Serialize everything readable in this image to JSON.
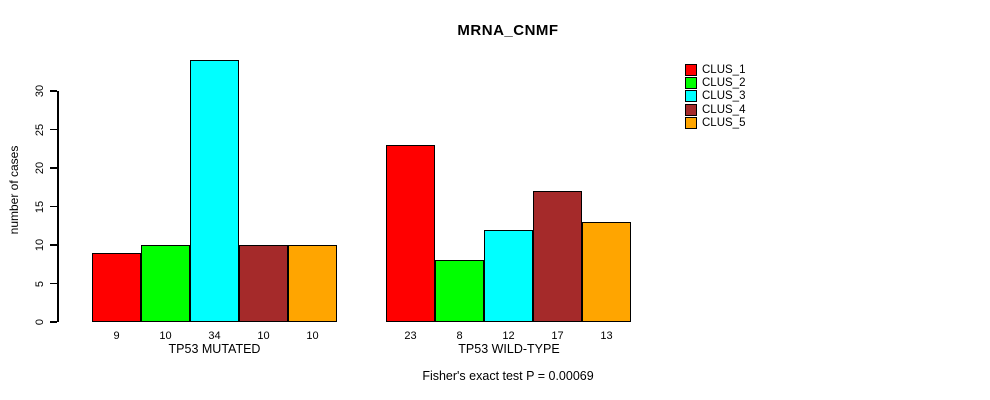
{
  "chart_data": {
    "type": "bar",
    "title": "MRNA_CNMF",
    "xlabel": "",
    "ylabel": "number of cases",
    "ylim": [
      0,
      34
    ],
    "yticks": [
      0,
      5,
      10,
      15,
      20,
      25,
      30
    ],
    "grid": false,
    "legend_position": "top-right",
    "series": [
      "CLUS_1",
      "CLUS_2",
      "CLUS_3",
      "CLUS_4",
      "CLUS_5"
    ],
    "series_colors": [
      "#ff0000",
      "#00ff00",
      "#00ffff",
      "#a52a2a",
      "#ffa500"
    ],
    "groups": [
      {
        "label": "TP53 MUTATED",
        "values": [
          9,
          10,
          34,
          10,
          10
        ]
      },
      {
        "label": "TP53 WILD-TYPE",
        "values": [
          23,
          8,
          12,
          17,
          13
        ]
      }
    ],
    "bar_value_labels_shown": true,
    "annotation": "Fisher's exact test P = 0.00069"
  }
}
